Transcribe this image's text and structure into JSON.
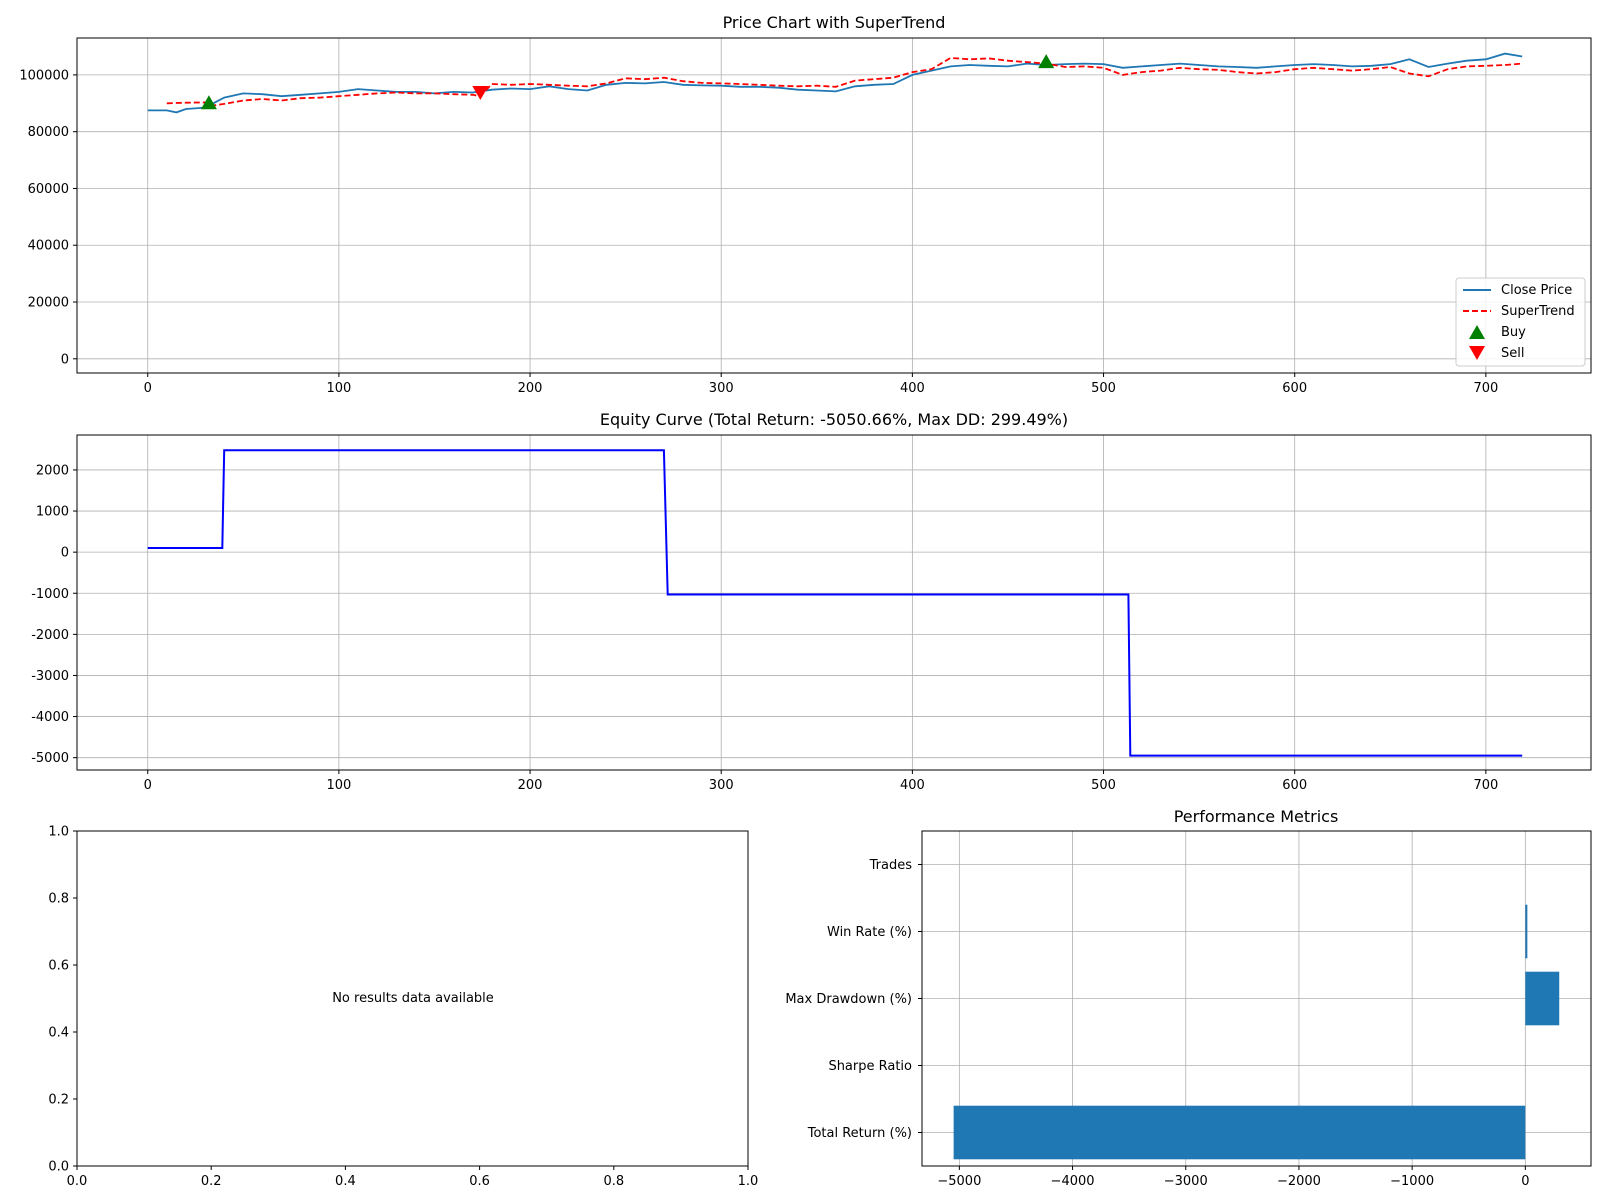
{
  "chart_data": [
    {
      "id": "price",
      "type": "line",
      "title": "Price Chart with SuperTrend",
      "xlim": [
        -37,
        755
      ],
      "ylim": [
        -5000,
        113000
      ],
      "x_ticks": [
        0,
        100,
        200,
        300,
        400,
        500,
        600,
        700
      ],
      "y_ticks": [
        0,
        20000,
        40000,
        60000,
        80000,
        100000
      ],
      "grid": true,
      "legend_position": "lower-right",
      "series": [
        {
          "name": "Close Price",
          "style": "solid",
          "color": "#1f77b4",
          "x": [
            0,
            10,
            15,
            20,
            30,
            40,
            50,
            60,
            70,
            80,
            90,
            100,
            110,
            120,
            130,
            140,
            150,
            160,
            170,
            180,
            190,
            200,
            210,
            220,
            230,
            240,
            250,
            260,
            270,
            280,
            290,
            300,
            310,
            320,
            330,
            340,
            350,
            360,
            370,
            380,
            390,
            400,
            410,
            420,
            430,
            440,
            450,
            460,
            470,
            480,
            490,
            500,
            510,
            520,
            530,
            540,
            550,
            560,
            570,
            580,
            590,
            600,
            610,
            620,
            630,
            640,
            650,
            660,
            670,
            680,
            690,
            700,
            710,
            719
          ],
          "values": [
            87500,
            87500,
            86800,
            88000,
            88500,
            92000,
            93500,
            93200,
            92500,
            93000,
            93500,
            94000,
            95000,
            94500,
            94000,
            94000,
            93500,
            94000,
            93800,
            94800,
            95200,
            95000,
            96000,
            95000,
            94500,
            96500,
            97200,
            97000,
            97500,
            96500,
            96300,
            96200,
            95800,
            95800,
            95500,
            94800,
            94500,
            94200,
            96000,
            96500,
            96800,
            100000,
            101500,
            103000,
            103500,
            103200,
            103000,
            104000,
            103500,
            103800,
            104000,
            103800,
            102500,
            103000,
            103500,
            104000,
            103500,
            103000,
            102800,
            102500,
            103000,
            103500,
            103800,
            103500,
            103000,
            103200,
            103800,
            105500,
            102800,
            104000,
            105000,
            105500,
            107500,
            106500
          ]
        },
        {
          "name": "SuperTrend",
          "style": "dashed",
          "color": "#ff0000",
          "x": [
            10,
            20,
            30,
            32,
            40,
            50,
            60,
            70,
            80,
            90,
            100,
            110,
            120,
            130,
            140,
            150,
            160,
            170,
            174,
            180,
            190,
            200,
            210,
            220,
            230,
            240,
            250,
            260,
            270,
            280,
            290,
            300,
            310,
            320,
            330,
            340,
            350,
            360,
            370,
            380,
            390,
            400,
            410,
            420,
            430,
            440,
            450,
            460,
            470,
            480,
            490,
            500,
            510,
            520,
            530,
            540,
            550,
            560,
            570,
            580,
            590,
            600,
            610,
            620,
            630,
            640,
            650,
            660,
            670,
            680,
            690,
            700,
            710,
            719
          ],
          "values": [
            90000,
            90200,
            90300,
            89000,
            89800,
            91000,
            91500,
            91000,
            91800,
            92000,
            92500,
            93000,
            93500,
            93800,
            93500,
            93500,
            93200,
            93000,
            92500,
            96800,
            96500,
            96800,
            96500,
            96200,
            96000,
            97000,
            98800,
            98500,
            99000,
            97800,
            97200,
            97000,
            96800,
            96500,
            96200,
            96000,
            96200,
            95800,
            98000,
            98500,
            99000,
            101000,
            102000,
            106000,
            105500,
            105800,
            105000,
            104500,
            104000,
            102800,
            103000,
            102500,
            100000,
            101000,
            101500,
            102500,
            102000,
            101800,
            101000,
            100500,
            101000,
            102000,
            102500,
            102000,
            101500,
            102000,
            102800,
            100500,
            99500,
            102000,
            103000,
            103200,
            103500,
            104000
          ]
        }
      ],
      "markers": [
        {
          "name": "Buy",
          "symbol": "triangle-up",
          "color": "#008000",
          "x": [
            32,
            470
          ],
          "values": [
            90000,
            104500
          ]
        },
        {
          "name": "Sell",
          "symbol": "triangle-down",
          "color": "#ff0000",
          "x": [
            174
          ],
          "values": [
            94000
          ]
        }
      ]
    },
    {
      "id": "equity",
      "type": "line",
      "title": "Equity Curve (Total Return: -5050.66%, Max DD: 299.49%)",
      "xlim": [
        -37,
        755
      ],
      "ylim": [
        -5300,
        2850
      ],
      "x_ticks": [
        0,
        100,
        200,
        300,
        400,
        500,
        600,
        700
      ],
      "y_ticks": [
        -5000,
        -4000,
        -3000,
        -2000,
        -1000,
        0,
        1000,
        2000
      ],
      "grid": true,
      "series": [
        {
          "color": "#0000ff",
          "style": "solid",
          "x": [
            0,
            39,
            40,
            270,
            272,
            513,
            514,
            719
          ],
          "values": [
            100,
            100,
            2480,
            2480,
            -1030,
            -1030,
            -4950,
            -4950
          ]
        }
      ]
    },
    {
      "id": "results",
      "type": "scatter",
      "message": "No results data available",
      "xlim": [
        0,
        1
      ],
      "ylim": [
        0,
        1
      ],
      "x_ticks": [
        "0.0",
        "0.2",
        "0.4",
        "0.6",
        "0.8",
        "1.0"
      ],
      "y_ticks": [
        "0.0",
        "0.2",
        "0.4",
        "0.6",
        "0.8",
        "1.0"
      ],
      "grid": false
    },
    {
      "id": "metrics",
      "type": "bar",
      "orientation": "horizontal",
      "title": "Performance Metrics",
      "color": "#1f77b4",
      "categories": [
        "Total Return (%)",
        "Sharpe Ratio",
        "Max Drawdown (%)",
        "Win Rate (%)",
        "Trades"
      ],
      "values": [
        -5050.66,
        0,
        299.49,
        12,
        0
      ],
      "xlim": [
        -5330,
        580
      ],
      "x_ticks": [
        -5000,
        -4000,
        -3000,
        -2000,
        -1000,
        0
      ],
      "x_tick_labels": [
        "−5000",
        "−4000",
        "−3000",
        "−2000",
        "−1000",
        "0"
      ],
      "grid": true
    }
  ]
}
